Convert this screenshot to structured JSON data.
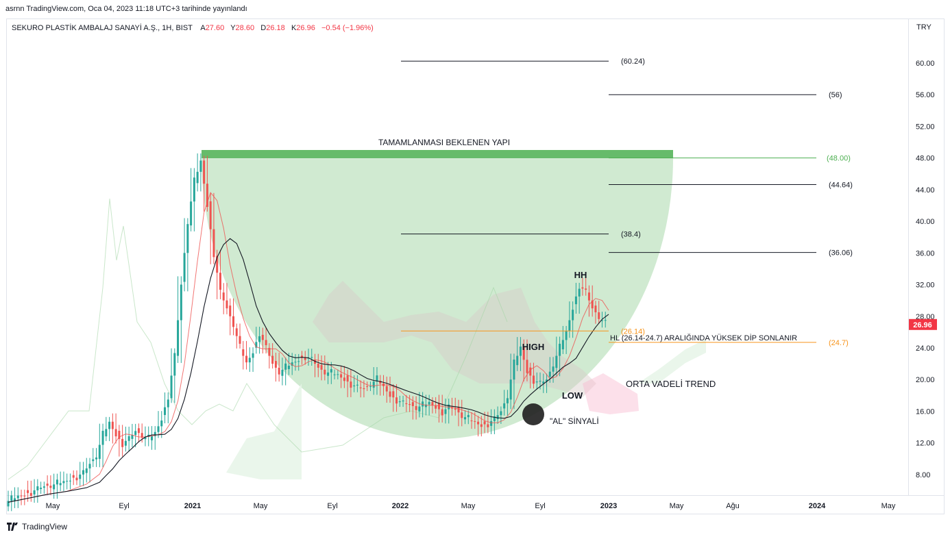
{
  "header": {
    "published_line": "asrnn TradingView.com, Oca 04, 2023 11:18 UTC+3 tarihinde yayınlandı",
    "symbol": "SEKURO PLASTİK AMBALAJ SANAYİ A.Ş., 1H, BIST",
    "open_label": "A",
    "open_value": "27.60",
    "high_label": "Y",
    "high_value": "28.60",
    "low_label": "D",
    "low_value": "26.18",
    "close_label": "K",
    "close_value": "26.96",
    "change": "−0.54 (−1.96%)"
  },
  "currency": "TRY",
  "footer": {
    "brand": "TradingView"
  },
  "colors": {
    "up": "#26a69a",
    "down": "#ef5350",
    "green_zone": "#c8e6c9",
    "green_bar": "#66bb6a",
    "orange": "#f7931a",
    "level_label_green": "#4caf50",
    "price_badge": "#f23645"
  },
  "chart_data": {
    "type": "candlestick",
    "y_axis_ticks": [
      "60.00",
      "56.00",
      "52.00",
      "48.00",
      "44.00",
      "40.00",
      "36.00",
      "32.00",
      "28.00",
      "24.00",
      "20.00",
      "16.00",
      "12.00",
      "8.00"
    ],
    "y_range": [
      4.7,
      64.2
    ],
    "x_axis_ticks": [
      "May",
      "Eyl",
      "2021",
      "May",
      "Eyl",
      "2022",
      "May",
      "Eyl",
      "2023",
      "May",
      "Ağu",
      "2024",
      "May"
    ],
    "last_price": "26.96",
    "price_series": [
      [
        0,
        4.5
      ],
      [
        3,
        5.5
      ],
      [
        6,
        6.5
      ],
      [
        9,
        7
      ],
      [
        12,
        8.2
      ],
      [
        14,
        10.5
      ],
      [
        15,
        13
      ],
      [
        16,
        14.5
      ],
      [
        17,
        13
      ],
      [
        18,
        12
      ],
      [
        19,
        12.5
      ],
      [
        20,
        13.5
      ],
      [
        21,
        13
      ],
      [
        22,
        12.5
      ],
      [
        23,
        13.2
      ],
      [
        24,
        15
      ],
      [
        25,
        18
      ],
      [
        26,
        23
      ],
      [
        27,
        32
      ],
      [
        28,
        40
      ],
      [
        29,
        45
      ],
      [
        30,
        47.5
      ],
      [
        31,
        42
      ],
      [
        32,
        36
      ],
      [
        33,
        31
      ],
      [
        34,
        29
      ],
      [
        35,
        27
      ],
      [
        36,
        24
      ],
      [
        37,
        22
      ],
      [
        38,
        23.5
      ],
      [
        39,
        26
      ],
      [
        40,
        24
      ],
      [
        41,
        22
      ],
      [
        42,
        21
      ],
      [
        43,
        21.5
      ],
      [
        44,
        22
      ],
      [
        45,
        22.5
      ],
      [
        46,
        23
      ],
      [
        47,
        22.5
      ],
      [
        48,
        21.5
      ],
      [
        49,
        21
      ],
      [
        50,
        20.8
      ],
      [
        51,
        20.5
      ],
      [
        52,
        20
      ],
      [
        53,
        19.5
      ],
      [
        54,
        19
      ],
      [
        55,
        18.8
      ],
      [
        56,
        19.5
      ],
      [
        57,
        20
      ],
      [
        58,
        19
      ],
      [
        59,
        18
      ],
      [
        60,
        17.5
      ],
      [
        61,
        17
      ],
      [
        62,
        16.8
      ],
      [
        63,
        16.5
      ],
      [
        64,
        16.7
      ],
      [
        65,
        17
      ],
      [
        66,
        16.5
      ],
      [
        67,
        16
      ],
      [
        68,
        16.5
      ],
      [
        69,
        16.2
      ],
      [
        70,
        15.5
      ],
      [
        71,
        15
      ],
      [
        72,
        14.5
      ],
      [
        73,
        14.2
      ],
      [
        74,
        14.5
      ],
      [
        75,
        15
      ],
      [
        76,
        16
      ],
      [
        77,
        18
      ],
      [
        78,
        22
      ],
      [
        79,
        24
      ],
      [
        80,
        21
      ],
      [
        81,
        20
      ],
      [
        82,
        19.5
      ],
      [
        83,
        20
      ],
      [
        84,
        22
      ],
      [
        85,
        24
      ],
      [
        86,
        26
      ],
      [
        87,
        29
      ],
      [
        88,
        32
      ],
      [
        89,
        31
      ],
      [
        90,
        29
      ],
      [
        91,
        28
      ],
      [
        92,
        27
      ]
    ],
    "levels": [
      {
        "label": "(60.24)",
        "value": 60.24
      },
      {
        "label": "(56)",
        "value": 56
      },
      {
        "label": "(48.00)",
        "value": 48.0
      },
      {
        "label": "(44.64)",
        "value": 44.64
      },
      {
        "label": "(38.4)",
        "value": 38.4
      },
      {
        "label": "(36.06)",
        "value": 36.06
      },
      {
        "label": "(26.14)",
        "value": 26.14
      },
      {
        "label": "(24.7)",
        "value": 24.7
      }
    ]
  },
  "annotations": {
    "pattern_title": "TAMAMLANMASI BEKLENEN YAPI",
    "hh": "HH",
    "high": "HIGH",
    "low": "LOW",
    "hl_note": "HL (26.14-24.7) ARALIĞINDA YÜKSEK DİP SONLANIR",
    "trend": "ORTA VADELİ TREND",
    "signal": "\"AL\" SİNYALİ"
  }
}
